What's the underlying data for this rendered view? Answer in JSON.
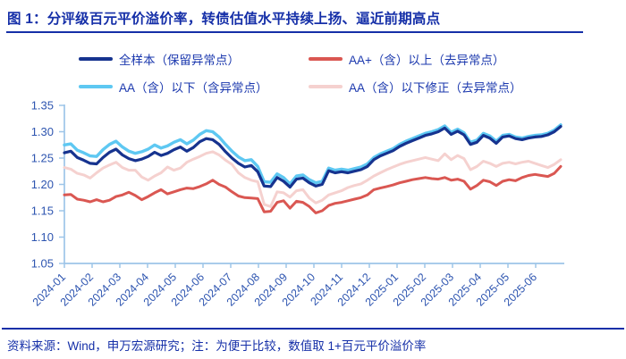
{
  "title": "图 1：分评级百元平价溢价率，转债估值水平持续上扬、逼近前期高点",
  "source_note": "资料来源：Wind，申万宏源研究；注：为便于比较，数值取 1+百元平价溢价率",
  "colors": {
    "title_text": "#152fa8",
    "legend_text": "#1b38ae",
    "rule_line": "#152fa8",
    "axis_line": "#9dc5e8",
    "tick_label": "#2e55b0",
    "background": "#ffffff"
  },
  "chart_data": {
    "type": "line",
    "title": "",
    "xlabel": "",
    "ylabel": "",
    "ylim": [
      1.05,
      1.35
    ],
    "yticks": [
      1.05,
      1.1,
      1.15,
      1.2,
      1.25,
      1.3,
      1.35
    ],
    "grid": false,
    "legend_position": "top",
    "categories": [
      "2024-01",
      "2024-02",
      "2024-03",
      "2024-04",
      "2024-05",
      "2024-06",
      "2024-07",
      "2024-08",
      "2024-09",
      "2024-10",
      "2024-11",
      "2024-12",
      "2025-01",
      "2025-02",
      "2025-03",
      "2025-04",
      "2025-05",
      "2025-06"
    ],
    "series": [
      {
        "name": "全样本（保留异常点）",
        "color": "#16338f",
        "width": 3.2,
        "values": [
          1.26,
          1.263,
          1.251,
          1.246,
          1.24,
          1.239,
          1.251,
          1.261,
          1.267,
          1.256,
          1.249,
          1.245,
          1.248,
          1.253,
          1.261,
          1.255,
          1.259,
          1.266,
          1.271,
          1.263,
          1.27,
          1.281,
          1.287,
          1.285,
          1.276,
          1.262,
          1.25,
          1.24,
          1.233,
          1.236,
          1.224,
          1.197,
          1.196,
          1.213,
          1.206,
          1.195,
          1.21,
          1.212,
          1.203,
          1.197,
          1.2,
          1.226,
          1.222,
          1.224,
          1.222,
          1.225,
          1.228,
          1.234,
          1.247,
          1.254,
          1.259,
          1.264,
          1.272,
          1.278,
          1.283,
          1.288,
          1.293,
          1.296,
          1.3,
          1.307,
          1.295,
          1.301,
          1.294,
          1.276,
          1.28,
          1.293,
          1.288,
          1.278,
          1.29,
          1.292,
          1.287,
          1.285,
          1.288,
          1.29,
          1.291,
          1.294,
          1.3,
          1.31
        ]
      },
      {
        "name": "AA+（含）以上（去异常点）",
        "color": "#da5752",
        "width": 3.0,
        "values": [
          1.18,
          1.181,
          1.172,
          1.17,
          1.167,
          1.171,
          1.167,
          1.17,
          1.177,
          1.18,
          1.185,
          1.179,
          1.171,
          1.177,
          1.184,
          1.19,
          1.182,
          1.186,
          1.19,
          1.193,
          1.192,
          1.196,
          1.201,
          1.208,
          1.2,
          1.195,
          1.186,
          1.178,
          1.175,
          1.174,
          1.173,
          1.148,
          1.149,
          1.166,
          1.169,
          1.155,
          1.168,
          1.166,
          1.158,
          1.146,
          1.15,
          1.16,
          1.164,
          1.166,
          1.169,
          1.172,
          1.175,
          1.18,
          1.19,
          1.193,
          1.196,
          1.199,
          1.203,
          1.206,
          1.209,
          1.211,
          1.213,
          1.211,
          1.21,
          1.213,
          1.208,
          1.21,
          1.206,
          1.191,
          1.198,
          1.208,
          1.205,
          1.198,
          1.206,
          1.209,
          1.207,
          1.213,
          1.217,
          1.219,
          1.217,
          1.215,
          1.221,
          1.234
        ]
      },
      {
        "name": "AA（含）以下（含异常点）",
        "color": "#5ec8f2",
        "width": 3.4,
        "values": [
          1.275,
          1.277,
          1.265,
          1.26,
          1.254,
          1.253,
          1.266,
          1.276,
          1.282,
          1.271,
          1.263,
          1.259,
          1.262,
          1.267,
          1.275,
          1.269,
          1.273,
          1.28,
          1.285,
          1.277,
          1.284,
          1.295,
          1.302,
          1.3,
          1.29,
          1.276,
          1.263,
          1.252,
          1.245,
          1.247,
          1.234,
          1.205,
          1.204,
          1.22,
          1.213,
          1.201,
          1.216,
          1.218,
          1.209,
          1.203,
          1.206,
          1.231,
          1.227,
          1.229,
          1.227,
          1.23,
          1.233,
          1.239,
          1.251,
          1.258,
          1.263,
          1.268,
          1.276,
          1.282,
          1.287,
          1.292,
          1.297,
          1.3,
          1.304,
          1.311,
          1.299,
          1.305,
          1.298,
          1.28,
          1.284,
          1.297,
          1.292,
          1.282,
          1.293,
          1.295,
          1.29,
          1.288,
          1.291,
          1.293,
          1.294,
          1.297,
          1.303,
          1.313
        ]
      },
      {
        "name": "AA（含）以下修正（去异常点）",
        "color": "#f5d1cf",
        "width": 3.0,
        "values": [
          1.232,
          1.229,
          1.221,
          1.218,
          1.212,
          1.222,
          1.231,
          1.237,
          1.242,
          1.232,
          1.227,
          1.227,
          1.214,
          1.208,
          1.216,
          1.222,
          1.233,
          1.227,
          1.231,
          1.242,
          1.248,
          1.253,
          1.259,
          1.262,
          1.256,
          1.246,
          1.238,
          1.222,
          1.213,
          1.208,
          1.205,
          1.162,
          1.158,
          1.186,
          1.184,
          1.176,
          1.188,
          1.19,
          1.174,
          1.165,
          1.17,
          1.18,
          1.184,
          1.188,
          1.194,
          1.198,
          1.201,
          1.208,
          1.216,
          1.222,
          1.228,
          1.233,
          1.238,
          1.242,
          1.245,
          1.248,
          1.251,
          1.248,
          1.245,
          1.258,
          1.247,
          1.255,
          1.249,
          1.228,
          1.234,
          1.244,
          1.24,
          1.234,
          1.24,
          1.242,
          1.239,
          1.242,
          1.244,
          1.24,
          1.236,
          1.232,
          1.238,
          1.247
        ]
      }
    ]
  }
}
